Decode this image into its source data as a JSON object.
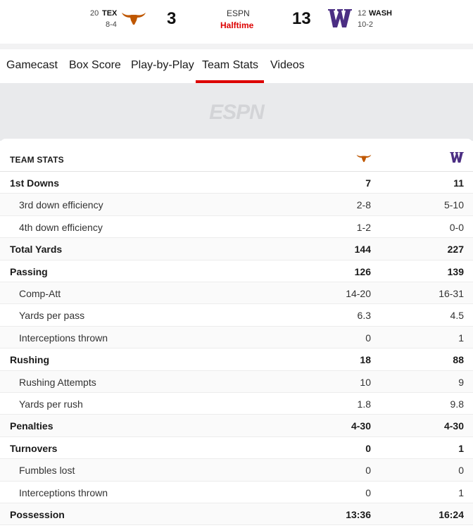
{
  "scoreboard": {
    "away": {
      "rank": "20",
      "abbr": "TEX",
      "record": "8-4",
      "score": "3",
      "color": "#bf5700"
    },
    "home": {
      "rank": "12",
      "abbr": "WASH",
      "record": "10-2",
      "score": "13",
      "color": "#4b2e83"
    },
    "network": "ESPN",
    "status": "Halftime"
  },
  "tabs": [
    "Gamecast",
    "Box Score",
    "Play-by-Play",
    "Team Stats",
    "Videos"
  ],
  "active_tab": "Team Stats",
  "logo_text": "ESPN",
  "stats": {
    "title": "TEAM STATS",
    "rows": [
      {
        "label": "1st Downs",
        "away": "7",
        "home": "11",
        "type": "main"
      },
      {
        "label": "3rd down efficiency",
        "away": "2-8",
        "home": "5-10",
        "type": "sub"
      },
      {
        "label": "4th down efficiency",
        "away": "1-2",
        "home": "0-0",
        "type": "sub"
      },
      {
        "label": "Total Yards",
        "away": "144",
        "home": "227",
        "type": "main"
      },
      {
        "label": "Passing",
        "away": "126",
        "home": "139",
        "type": "main"
      },
      {
        "label": "Comp-Att",
        "away": "14-20",
        "home": "16-31",
        "type": "sub"
      },
      {
        "label": "Yards per pass",
        "away": "6.3",
        "home": "4.5",
        "type": "sub"
      },
      {
        "label": "Interceptions thrown",
        "away": "0",
        "home": "1",
        "type": "sub"
      },
      {
        "label": "Rushing",
        "away": "18",
        "home": "88",
        "type": "main"
      },
      {
        "label": "Rushing Attempts",
        "away": "10",
        "home": "9",
        "type": "sub"
      },
      {
        "label": "Yards per rush",
        "away": "1.8",
        "home": "9.8",
        "type": "sub"
      },
      {
        "label": "Penalties",
        "away": "4-30",
        "home": "4-30",
        "type": "main"
      },
      {
        "label": "Turnovers",
        "away": "0",
        "home": "1",
        "type": "main"
      },
      {
        "label": "Fumbles lost",
        "away": "0",
        "home": "0",
        "type": "sub"
      },
      {
        "label": "Interceptions thrown",
        "away": "0",
        "home": "1",
        "type": "sub"
      },
      {
        "label": "Possession",
        "away": "13:36",
        "home": "16:24",
        "type": "main"
      }
    ]
  }
}
